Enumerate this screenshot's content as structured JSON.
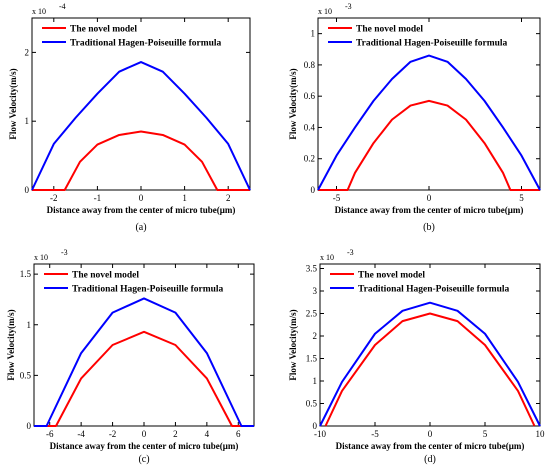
{
  "chart_data": [
    {
      "type": "line",
      "panel_label": "(a)",
      "xlabel": "Distance away from the center of micro tube(μm)",
      "ylabel": "Flow Velocity(m/s)",
      "y_exponent": "x 10",
      "y_exponent_power": "-4",
      "xlim": [
        -2.5,
        2.5
      ],
      "ylim": [
        0,
        2.5
      ],
      "xticks": [
        -2,
        -1,
        0,
        1,
        2
      ],
      "xtick_labels": [
        "-2",
        "-1",
        "0",
        "1",
        "2"
      ],
      "yticks": [
        0,
        1,
        2
      ],
      "ytick_labels": [
        "0",
        "1",
        "2"
      ],
      "legend": [
        "The novel model",
        "Traditional Hagen-Poiseuille formula"
      ],
      "series": [
        {
          "name": "The novel model",
          "color": "#ff0000",
          "x": [
            -2.5,
            -1.75,
            -1.4,
            -1.0,
            -0.5,
            0,
            0.5,
            1.0,
            1.4,
            1.75,
            2.5
          ],
          "y": [
            0,
            0,
            0.41,
            0.66,
            0.8,
            0.85,
            0.8,
            0.66,
            0.41,
            0,
            0
          ]
        },
        {
          "name": "Traditional Hagen-Poiseuille formula",
          "color": "#0000ff",
          "x": [
            -2.5,
            -2.0,
            -1.5,
            -1.0,
            -0.5,
            0,
            0.5,
            1.0,
            1.5,
            2.0,
            2.5
          ],
          "y": [
            0,
            0.67,
            1.05,
            1.4,
            1.72,
            1.86,
            1.72,
            1.4,
            1.05,
            0.67,
            0
          ]
        }
      ]
    },
    {
      "type": "line",
      "panel_label": "(b)",
      "xlabel": "Distance away from the center of micro tube(μm)",
      "ylabel": "Flow Velocity(m/s)",
      "y_exponent": "x 10",
      "y_exponent_power": "-3",
      "xlim": [
        -6,
        6
      ],
      "ylim": [
        0,
        1.1
      ],
      "xticks": [
        -5,
        0,
        5
      ],
      "xtick_labels": [
        "-5",
        "0",
        "5"
      ],
      "yticks": [
        0,
        0.2,
        0.4,
        0.6,
        0.8,
        1
      ],
      "ytick_labels": [
        "0",
        "0.2",
        "0.4",
        "0.6",
        "0.8",
        "1"
      ],
      "legend": [
        "The novel model",
        "Traditional Hagen-Poiseuille formula"
      ],
      "series": [
        {
          "name": "The novel model",
          "color": "#ff0000",
          "x": [
            -6,
            -4.4,
            -4,
            -3,
            -2,
            -1,
            0,
            1,
            2,
            3,
            4,
            4.4,
            6
          ],
          "y": [
            0,
            0,
            0.11,
            0.3,
            0.45,
            0.54,
            0.57,
            0.54,
            0.45,
            0.3,
            0.11,
            0,
            0
          ]
        },
        {
          "name": "Traditional Hagen-Poiseuille formula",
          "color": "#0000ff",
          "x": [
            -6,
            -5,
            -4,
            -3,
            -2,
            -1,
            0,
            1,
            2,
            3,
            4,
            5,
            6
          ],
          "y": [
            0,
            0.22,
            0.4,
            0.57,
            0.71,
            0.82,
            0.86,
            0.82,
            0.71,
            0.57,
            0.4,
            0.22,
            0
          ]
        }
      ]
    },
    {
      "type": "line",
      "panel_label": "(c)",
      "xlabel": "Distance away from the center of micro tube(μm)",
      "ylabel": "Flow Velocity(m/s)",
      "y_exponent": "x 10",
      "y_exponent_power": "-3",
      "xlim": [
        -7,
        7
      ],
      "ylim": [
        0,
        1.6
      ],
      "xticks": [
        -6,
        -4,
        -2,
        0,
        2,
        4,
        6
      ],
      "xtick_labels": [
        "-6",
        "-4",
        "-2",
        "0",
        "2",
        "4",
        "6"
      ],
      "yticks": [
        0,
        0.5,
        1,
        1.5
      ],
      "ytick_labels": [
        "0",
        "0.5",
        "1",
        "1.5"
      ],
      "legend": [
        "The novel model",
        "Traditional Hagen-Poiseuille formula"
      ],
      "series": [
        {
          "name": "The novel model",
          "color": "#ff0000",
          "x": [
            -7,
            -5.6,
            -4,
            -2,
            0,
            2,
            4,
            5.6,
            7
          ],
          "y": [
            0,
            0,
            0.47,
            0.8,
            0.93,
            0.8,
            0.47,
            0,
            0
          ]
        },
        {
          "name": "Traditional Hagen-Poiseuille formula",
          "color": "#0000ff",
          "x": [
            -7,
            -6.2,
            -4,
            -2,
            0,
            2,
            4,
            6.2,
            7
          ],
          "y": [
            0,
            0,
            0.72,
            1.12,
            1.26,
            1.12,
            0.72,
            0,
            0
          ]
        }
      ]
    },
    {
      "type": "line",
      "panel_label": "(d)",
      "xlabel": "Distance away from the center of micro tube(μm)",
      "ylabel": "Flow Velocity(m/s)",
      "y_exponent": "x 10",
      "y_exponent_power": "-3",
      "xlim": [
        -10,
        10
      ],
      "ylim": [
        0,
        3.6
      ],
      "xticks": [
        -10,
        -5,
        0,
        5,
        10
      ],
      "xtick_labels": [
        "-10",
        "-5",
        "0",
        "5",
        "10"
      ],
      "yticks": [
        0,
        0.5,
        1,
        1.5,
        2,
        2.5,
        3,
        3.5
      ],
      "ytick_labels": [
        "0",
        "0.5",
        "1",
        "1.5",
        "2",
        "2.5",
        "3",
        "3.5"
      ],
      "legend": [
        "The novel model",
        "Traditional Hagen-Poiseuille formula"
      ],
      "series": [
        {
          "name": "The novel model",
          "color": "#ff0000",
          "x": [
            -9.5,
            -8,
            -5,
            -2.5,
            0,
            2.5,
            5,
            8,
            9.5
          ],
          "y": [
            0,
            0.78,
            1.8,
            2.33,
            2.5,
            2.33,
            1.8,
            0.78,
            0
          ]
        },
        {
          "name": "Traditional Hagen-Poiseuille formula",
          "color": "#0000ff",
          "x": [
            -10,
            -8,
            -5,
            -2.5,
            0,
            2.5,
            5,
            8,
            10
          ],
          "y": [
            0,
            0.98,
            2.05,
            2.56,
            2.74,
            2.56,
            2.05,
            0.98,
            0
          ]
        }
      ]
    }
  ]
}
